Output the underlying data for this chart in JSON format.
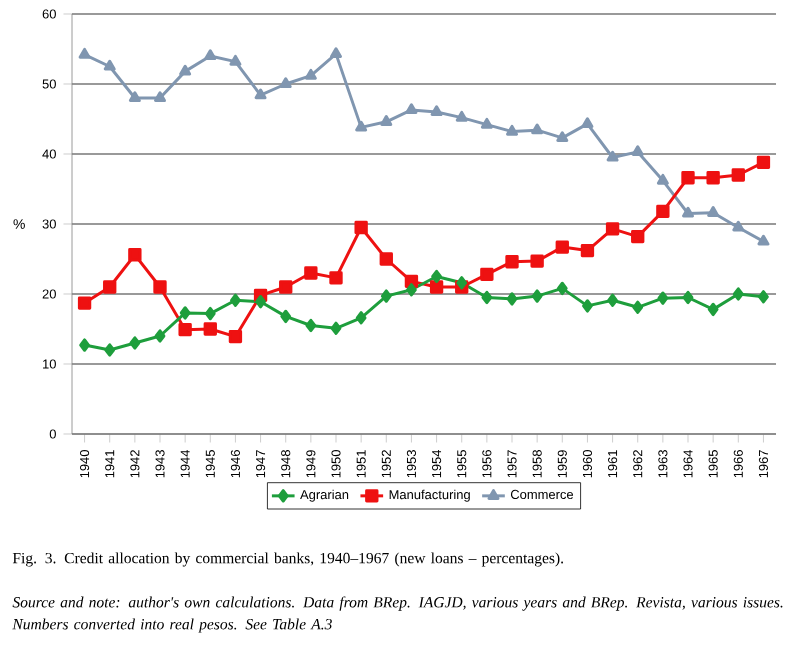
{
  "chart_data": {
    "type": "line",
    "title": "Fig. 3. Credit allocation by commercial banks, 1940–1967 (new loans – percentages).",
    "annotations": [
      "*Source and note: author's own calculations. Data from BRep. IAGJD, various years and BRep. Revista, various issues. Numbers converted into real pesos. See Table A.3*"
    ],
    "ylabel": "%",
    "categories": [
      "1940",
      "1941",
      "1942",
      "1943",
      "1944",
      "1945",
      "1946",
      "1947",
      "1948",
      "1949",
      "1950",
      "1951",
      "1952",
      "1953",
      "1954",
      "1955",
      "1956",
      "1957",
      "1958",
      "1959",
      "1960",
      "1961",
      "1962",
      "1963",
      "1964",
      "1965",
      "1966",
      "1967"
    ],
    "series": [
      {
        "name": "Agrarian",
        "color": "#1e9e3c",
        "marker": "diamond",
        "values": [
          12.7,
          12,
          13,
          14,
          17.3,
          17.2,
          19.1,
          18.9,
          16.8,
          15.5,
          15.1,
          16.6,
          19.7,
          20.6,
          22.5,
          21.6,
          19.5,
          19.3,
          19.7,
          20.8,
          18.3,
          19.1,
          18.1,
          19.4,
          19.5,
          17.8,
          20,
          19.6
        ]
      },
      {
        "name": "Manufacturing",
        "color": "#ee1111",
        "marker": "square",
        "values": [
          18.7,
          21,
          25.6,
          21,
          14.9,
          15,
          13.9,
          19.8,
          21,
          23,
          22.3,
          29.5,
          25,
          21.8,
          21,
          21,
          22.8,
          24.6,
          24.7,
          26.7,
          26.2,
          29.3,
          28.2,
          31.8,
          36.6,
          36.6,
          37,
          38.8
        ]
      },
      {
        "name": "Commerce",
        "color": "#8096b0",
        "marker": "triangle",
        "values": [
          54.2,
          52.5,
          48,
          48,
          51.8,
          54,
          53.2,
          48.4,
          50,
          51.2,
          54.3,
          43.8,
          44.6,
          46.3,
          46,
          45.2,
          44.2,
          43.2,
          43.4,
          42.3,
          44.3,
          39.5,
          40.3,
          36.2,
          31.5,
          31.6,
          29.5,
          27.5
        ]
      }
    ],
    "ylim": [
      0,
      60
    ],
    "yticks": [
      0,
      10,
      20,
      30,
      40,
      50,
      60
    ],
    "grid": "y",
    "legend": "bottom",
    "line_style": "solid"
  }
}
